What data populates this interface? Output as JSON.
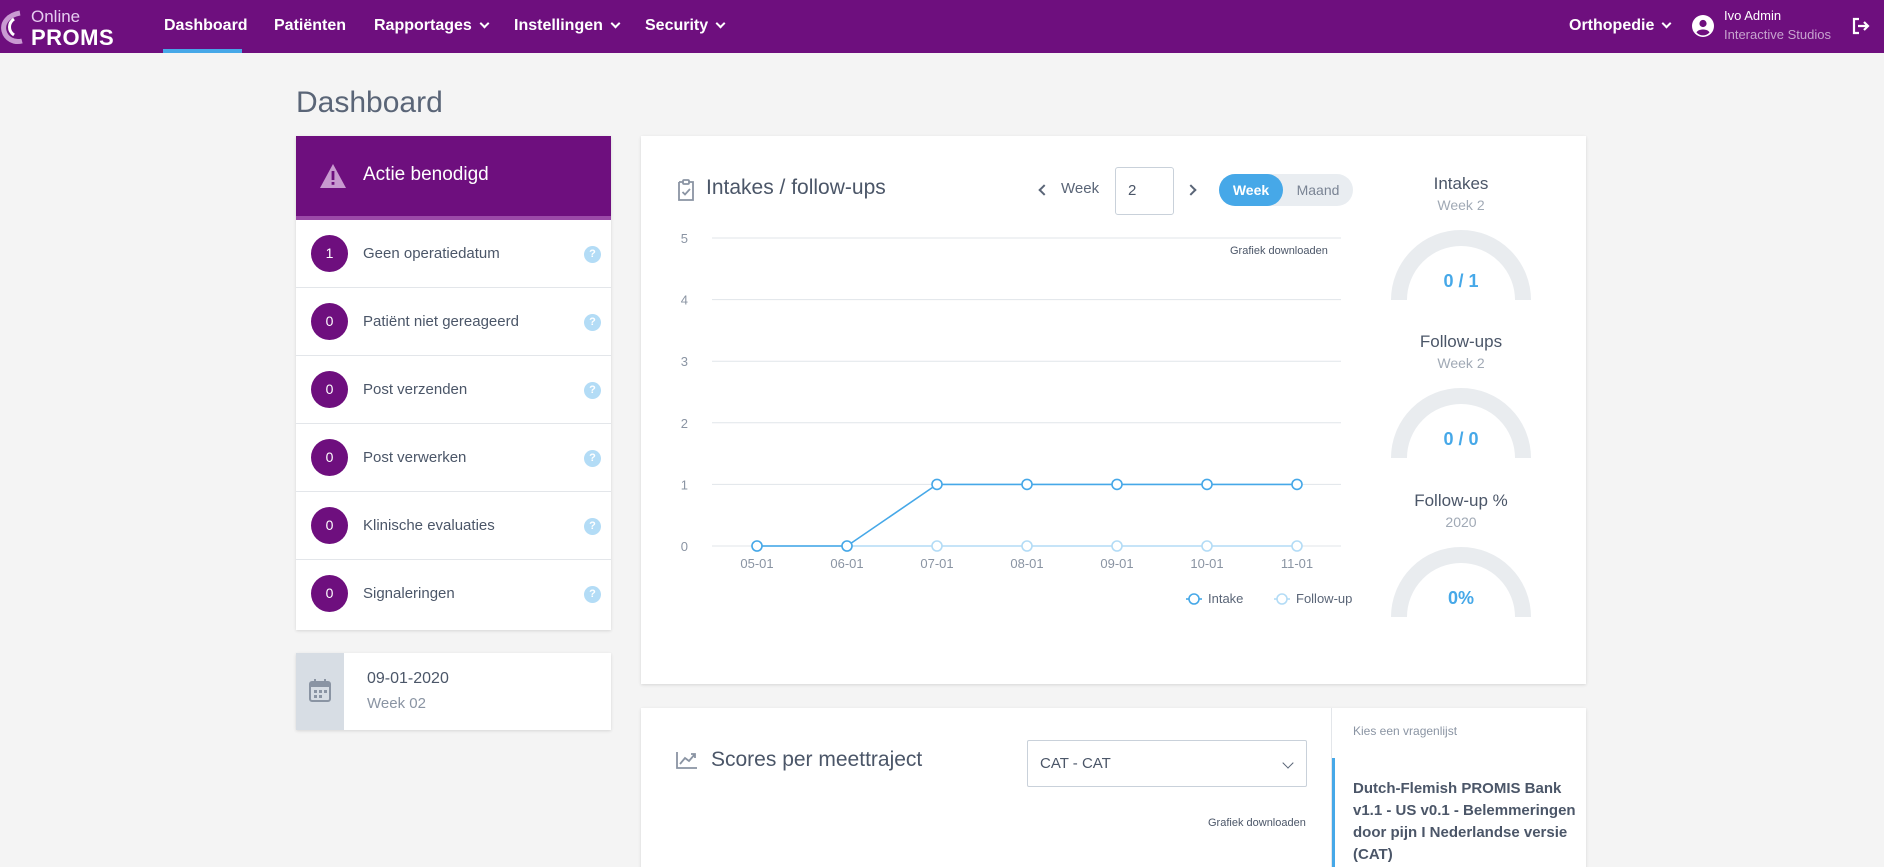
{
  "brand": {
    "online": "Online",
    "proms": "PROMS"
  },
  "nav": {
    "items": [
      {
        "label": "Dashboard",
        "has_dropdown": false,
        "active": true
      },
      {
        "label": "Patiënten",
        "has_dropdown": false
      },
      {
        "label": "Rapportages",
        "has_dropdown": true
      },
      {
        "label": "Instellingen",
        "has_dropdown": true
      },
      {
        "label": "Security",
        "has_dropdown": true
      }
    ],
    "department": "Orthopedie",
    "user_name": "Ivo Admin",
    "user_org": "Interactive Studios"
  },
  "page_title": "Dashboard",
  "actions": {
    "title": "Actie benodigd",
    "help_glyph": "?",
    "rows": [
      {
        "count": "1",
        "label": "Geen operatiedatum"
      },
      {
        "count": "0",
        "label": "Patiënt niet gereageerd"
      },
      {
        "count": "0",
        "label": "Post verzenden"
      },
      {
        "count": "0",
        "label": "Post verwerken"
      },
      {
        "count": "0",
        "label": "Klinische evaluaties"
      },
      {
        "count": "0",
        "label": "Signaleringen"
      }
    ]
  },
  "date_card": {
    "date": "09-01-2020",
    "week": "Week 02"
  },
  "intakes_card": {
    "title": "Intakes / follow-ups",
    "week_label": "Week",
    "week_value": "2",
    "toggle_week": "Week",
    "toggle_month": "Maand",
    "download_label": "Grafiek downloaden"
  },
  "chart_data": {
    "type": "line",
    "title": "",
    "x": [
      "05-01",
      "06-01",
      "07-01",
      "08-01",
      "09-01",
      "10-01",
      "11-01"
    ],
    "series": [
      {
        "name": "Intake",
        "values": [
          0,
          0,
          1,
          1,
          1,
          1,
          1
        ],
        "color": "#46a8e8"
      },
      {
        "name": "Follow-up",
        "values": [
          0,
          0,
          0,
          0,
          0,
          0,
          0
        ],
        "color": "#b3dcf6"
      }
    ],
    "ylim": [
      0,
      5
    ],
    "yticks": [
      0,
      1,
      2,
      3,
      4,
      5
    ],
    "grid": true,
    "legend": "bottom-right"
  },
  "stats": [
    {
      "title": "Intakes",
      "sub": "Week 2",
      "value": "0 / 1",
      "fraction": 0
    },
    {
      "title": "Follow-ups",
      "sub": "Week 2",
      "value": "0 / 0",
      "fraction": 0
    },
    {
      "title": "Follow-up %",
      "sub": "2020",
      "value": "0%",
      "fraction": 0
    }
  ],
  "scores_card": {
    "title": "Scores per meettraject",
    "select_value": "CAT - CAT",
    "download_label": "Grafiek downloaden",
    "list_label": "Kies een vragenlijst",
    "list_items": [
      "Dutch-Flemish PROMIS Bank v1.1 - US v0.1 - Belemmeringen door pijn I Nederlandse versie (CAT)"
    ]
  },
  "colors": {
    "brand_purple": "#6e0f7e",
    "accent_blue": "#46a8e8",
    "light_blue": "#b3dcf6"
  }
}
